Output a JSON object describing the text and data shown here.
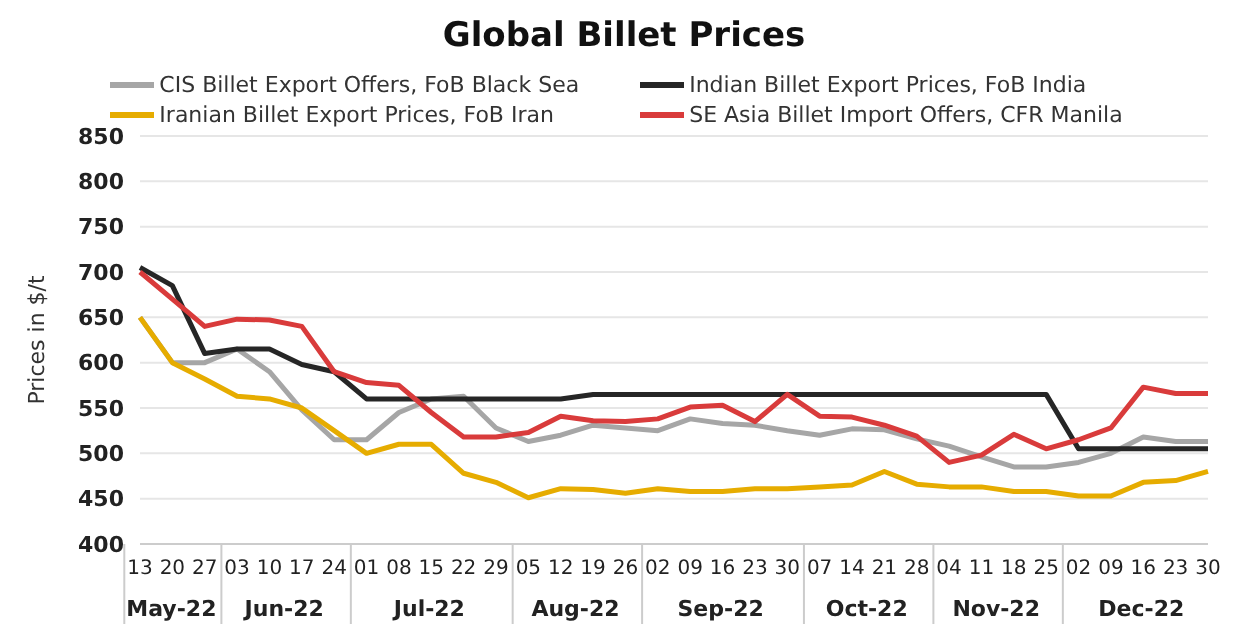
{
  "chart_data": {
    "type": "line",
    "title": "Global Billet Prices",
    "ylabel": "Prices in $/t",
    "categories": [
      "13",
      "20",
      "27",
      "03",
      "10",
      "17",
      "24",
      "01",
      "08",
      "15",
      "22",
      "29",
      "05",
      "12",
      "19",
      "26",
      "02",
      "09",
      "16",
      "23",
      "30",
      "07",
      "14",
      "21",
      "28",
      "04",
      "11",
      "18",
      "25",
      "02",
      "09",
      "16",
      "23",
      "30"
    ],
    "series": [
      {
        "name": "CIS Billet Export Offers, FoB Black Sea",
        "color": "#a6a6a6",
        "values": [
          650,
          600,
          600,
          615,
          590,
          548,
          515,
          515,
          545,
          560,
          563,
          528,
          513,
          520,
          531,
          528,
          525,
          538,
          533,
          531,
          525,
          520,
          527,
          526,
          516,
          508,
          496,
          485,
          485,
          490,
          500,
          518,
          513,
          513
        ]
      },
      {
        "name": "Indian Billet Export Prices, FoB India",
        "color": "#262626",
        "values": [
          705,
          685,
          610,
          615,
          615,
          598,
          590,
          560,
          560,
          560,
          560,
          560,
          560,
          560,
          565,
          565,
          565,
          565,
          565,
          565,
          565,
          565,
          565,
          565,
          565,
          565,
          565,
          565,
          565,
          505,
          505,
          505,
          505,
          505
        ]
      },
      {
        "name": "Iranian Billet Export Prices, FoB Iran",
        "color": "#e6ac00",
        "values": [
          650,
          600,
          582,
          563,
          560,
          550,
          525,
          500,
          510,
          510,
          478,
          468,
          451,
          461,
          460,
          456,
          461,
          458,
          458,
          461,
          461,
          463,
          465,
          480,
          466,
          463,
          463,
          458,
          458,
          453,
          453,
          468,
          470,
          480
        ]
      },
      {
        "name": "SE Asia Billet Import Offers, CFR Manila",
        "color": "#d93b3b",
        "values": [
          700,
          670,
          640,
          648,
          647,
          640,
          590,
          578,
          575,
          545,
          518,
          518,
          523,
          541,
          536,
          535,
          538,
          551,
          553,
          535,
          565,
          541,
          540,
          531,
          519,
          490,
          498,
          521,
          505,
          515,
          528,
          573,
          566,
          566
        ]
      }
    ],
    "ylim": [
      400,
      850
    ],
    "yticks": [
      400,
      450,
      500,
      550,
      600,
      650,
      700,
      750,
      800,
      850
    ],
    "grid": "y",
    "legend": "top",
    "marker": "none",
    "line_style": "solid",
    "annotations": [
      "May-22",
      "Jun-22",
      "Jul-22",
      "Aug-22",
      "Sep-22",
      "Oct-22",
      "Nov-22",
      "Dec-22"
    ]
  }
}
